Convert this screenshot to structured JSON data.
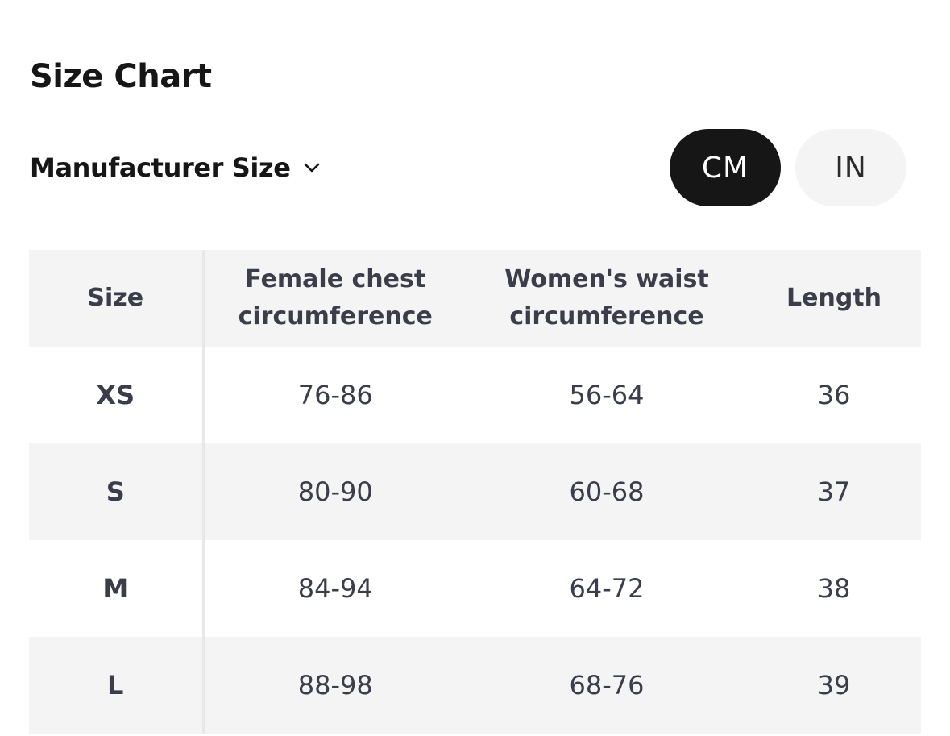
{
  "title": "Size Chart",
  "size_selector": {
    "label": "Manufacturer Size",
    "icon": "chevron-down-icon"
  },
  "unit_toggle": {
    "options": [
      "CM",
      "IN"
    ],
    "selected": "CM"
  },
  "table": {
    "headers": [
      "Size",
      "Female chest\ncircumference",
      "Women's waist\ncircumference",
      "Length"
    ],
    "rows": [
      [
        "XS",
        "76-86",
        "56-64",
        "36"
      ],
      [
        "S",
        "80-90",
        "60-68",
        "37"
      ],
      [
        "M",
        "84-94",
        "64-72",
        "38"
      ],
      [
        "L",
        "88-98",
        "68-76",
        "39"
      ]
    ]
  },
  "colors": {
    "active_toggle_bg": "#161616",
    "inactive_toggle_bg": "#f4f4f4",
    "header_bg": "#f4f4f4",
    "stripe_bg": "#f4f4f4",
    "text": "#3b3e4a"
  }
}
